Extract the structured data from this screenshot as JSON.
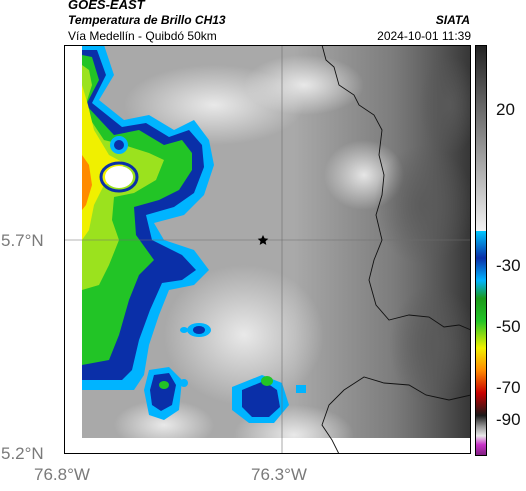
{
  "header": {
    "satellite": "GOES-EAST",
    "product": "Temperatura de Brillo CH13",
    "region": "Vía Medellín - Quibdó 50km",
    "agency": "SIATA",
    "datetime": "2024-10-01 11:39"
  },
  "axes": {
    "lat_ticks": [
      "5.7°N",
      "5.2°N"
    ],
    "lon_ticks": [
      "76.8°W",
      "76.3°W"
    ]
  },
  "colorbar": {
    "labels": [
      "20",
      "-30",
      "-50",
      "-70",
      "-90"
    ],
    "colors": {
      "warm_dark": "#2a2a2a",
      "warm_light": "#e8e8e8",
      "cyan": "#00b4ff",
      "blue": "#0a2fa8",
      "green": "#22c426",
      "yellow": "#f0f000",
      "orange": "#ff8a00",
      "red": "#c80000",
      "black": "#000000",
      "magenta": "#c832c8"
    }
  },
  "map": {
    "marker_icon": "star-icon"
  }
}
